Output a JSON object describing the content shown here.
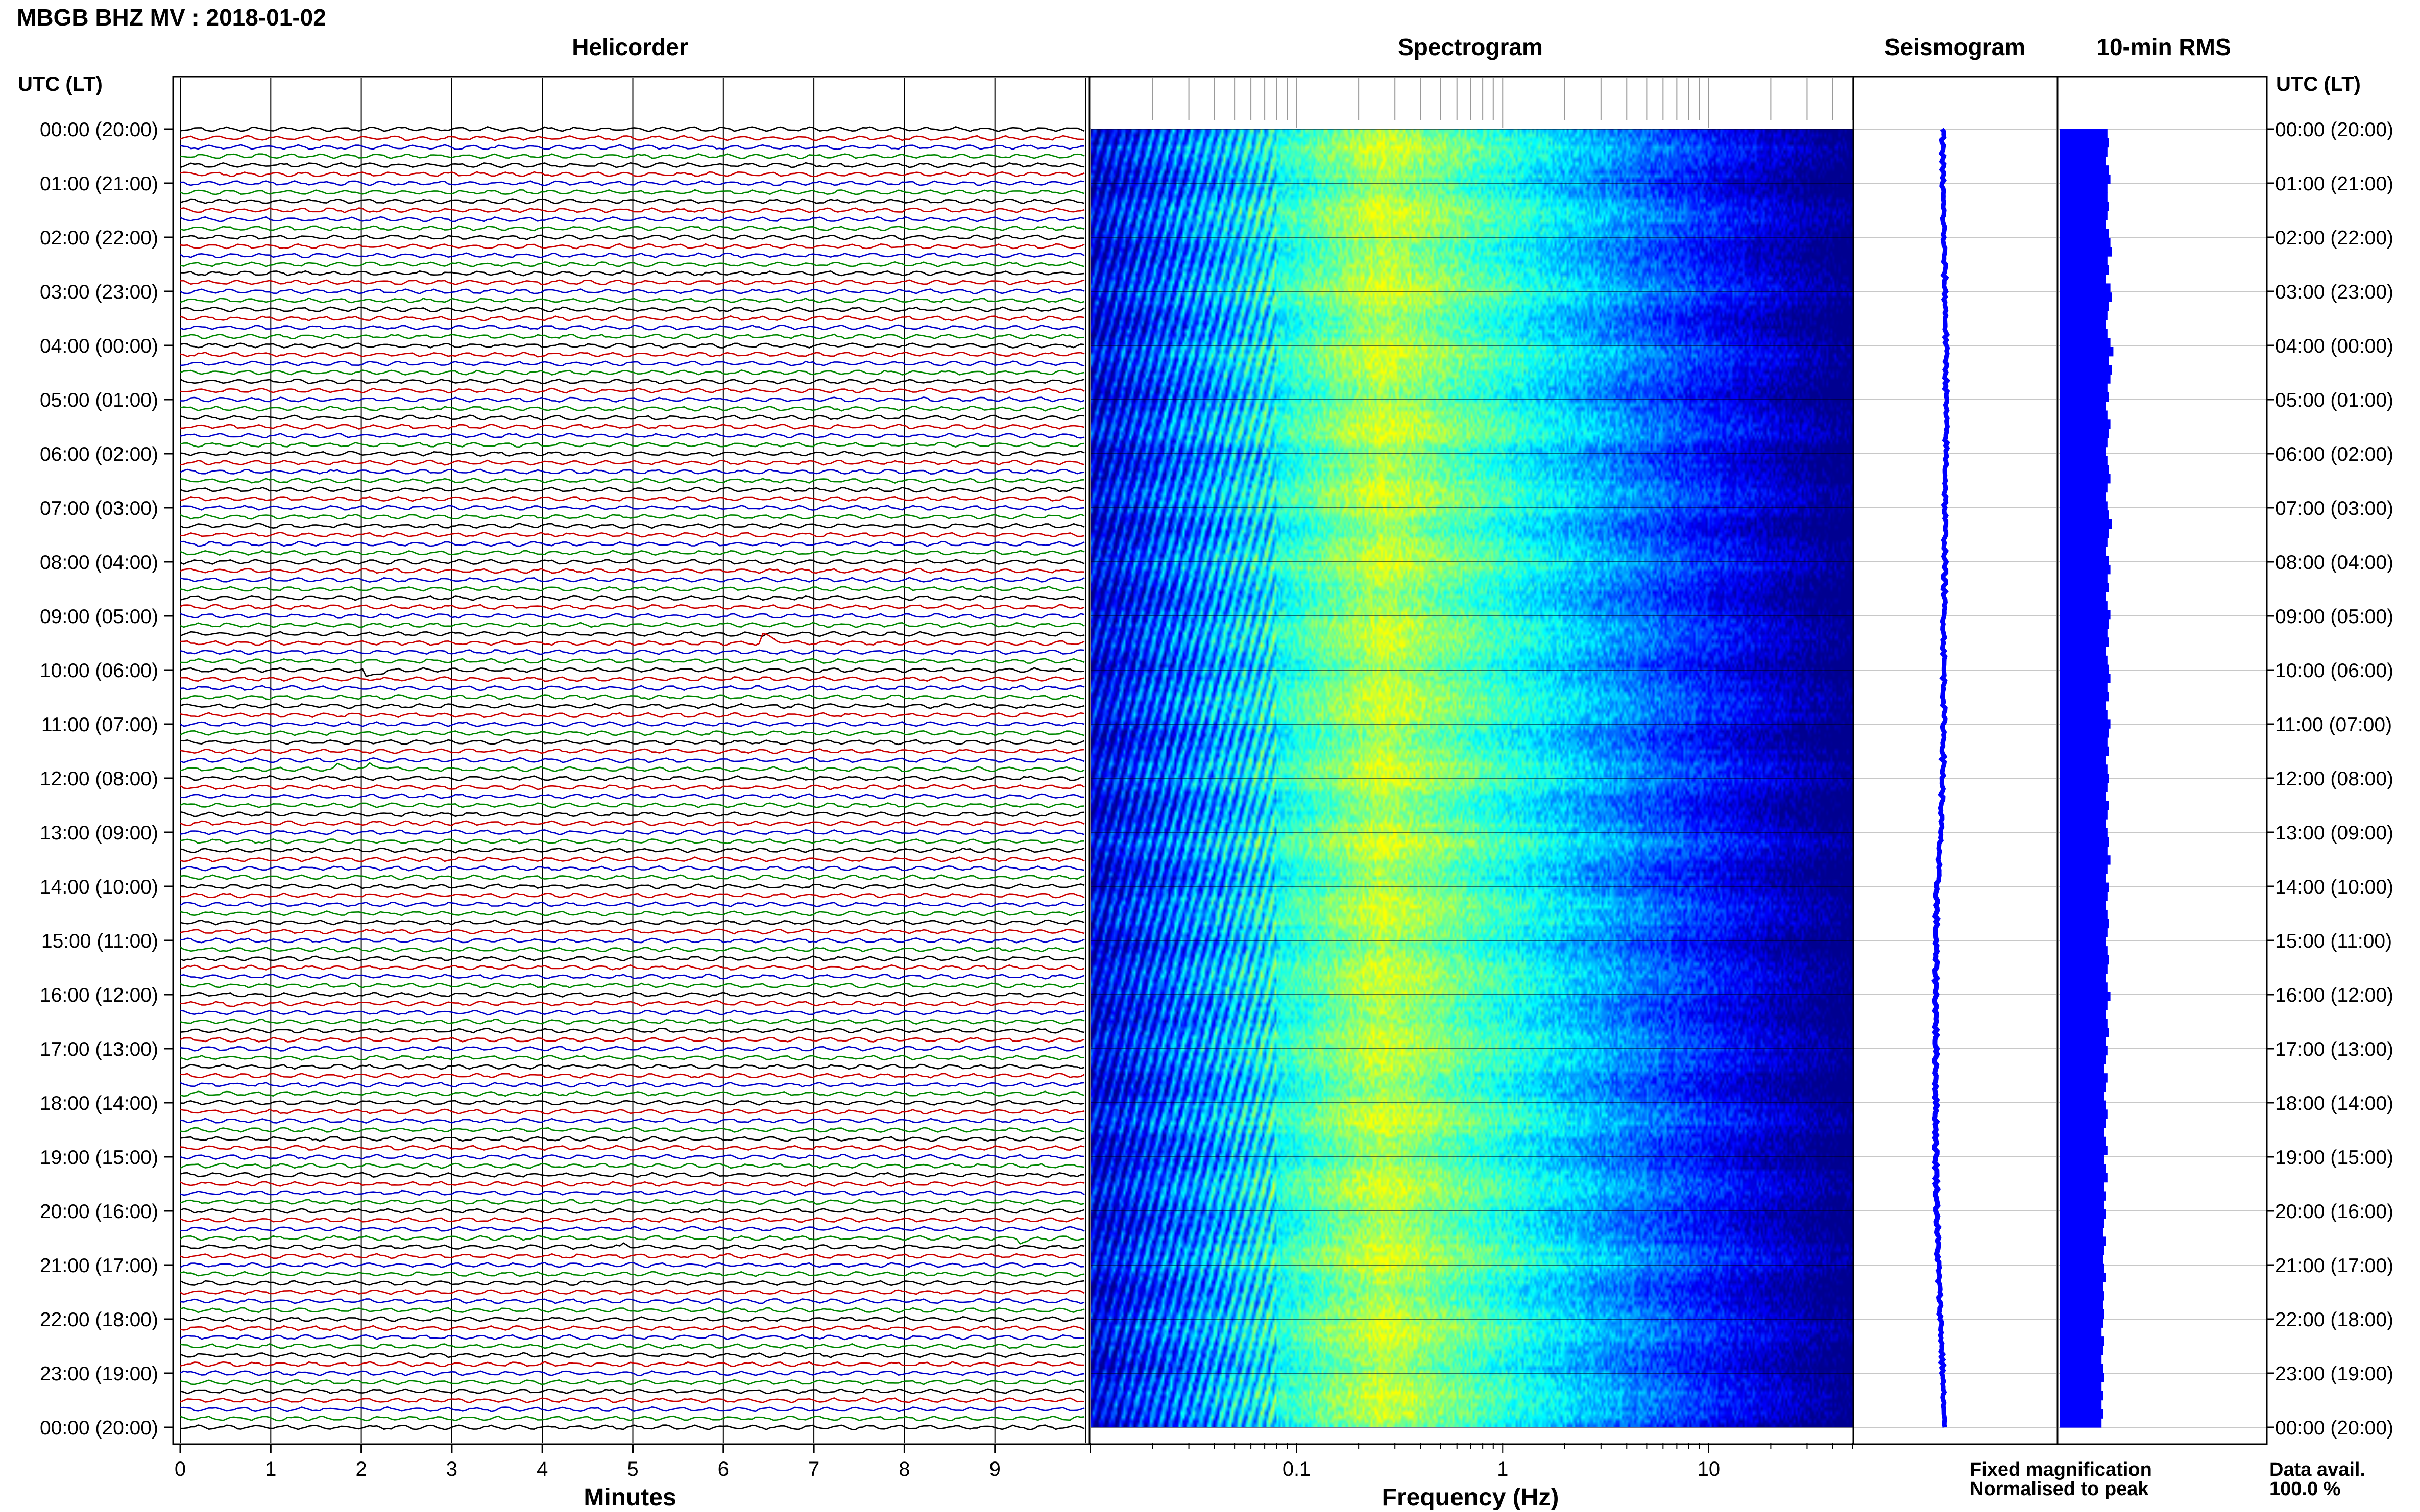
{
  "station_title": "MBGB BHZ MV : 2018-01-02",
  "chart_data": [
    {
      "type": "line",
      "title": "Helicorder",
      "xlabel": "Minutes",
      "xticks": [
        "0",
        "1",
        "2",
        "3",
        "4",
        "5",
        "6",
        "7",
        "8",
        "9"
      ],
      "xlim": [
        0,
        10
      ],
      "row_interval_minutes": 10,
      "row_colors": [
        "#000000",
        "#cc0000",
        "#0000cc",
        "#008800"
      ],
      "events": [
        {
          "row": 57,
          "minute": 6.45,
          "amplitude": 2.2
        },
        {
          "row": 60,
          "minute": 2.05,
          "amplitude": 3.5
        },
        {
          "row": 71,
          "minute": 1.75,
          "amplitude": 1.0
        },
        {
          "row": 71,
          "minute": 2.1,
          "amplitude": 1.2
        },
        {
          "row": 97,
          "minute": 0.5,
          "amplitude": 0.6
        },
        {
          "row": 97,
          "minute": 5.9,
          "amplitude": 0.6
        },
        {
          "row": 98,
          "minute": 7.7,
          "amplitude": 0.8
        },
        {
          "row": 123,
          "minute": 9.3,
          "amplitude": 2.5
        },
        {
          "row": 124,
          "minute": 4.9,
          "amplitude": 0.8
        }
      ]
    },
    {
      "type": "heatmap",
      "title": "Spectrogram",
      "xlabel": "Frequency (Hz)",
      "xscale": "log",
      "xlim": [
        0.01,
        50
      ],
      "xticks": [
        {
          "value": 0.1,
          "label": "0.1"
        },
        {
          "value": 1,
          "label": "1"
        },
        {
          "value": 10,
          "label": "10"
        }
      ],
      "peak_frequency_hz": 0.25,
      "colormap": [
        "#000090",
        "#0000ff",
        "#0080ff",
        "#00ffff",
        "#80ff80",
        "#ffff00"
      ]
    },
    {
      "type": "line",
      "title": "Seismogram",
      "trace_color": "#0000ff",
      "xlim": [
        -1,
        1
      ],
      "offsets": [
        0,
        0,
        0.01,
        0.02,
        0.03,
        0.03,
        0.03,
        0.02,
        0.02,
        0.01,
        0.01,
        0.01,
        0.0,
        -0.02,
        -0.05,
        -0.06,
        -0.06,
        -0.06,
        -0.06,
        -0.06,
        -0.05,
        -0.04,
        -0.02,
        0.0,
        0.01
      ]
    },
    {
      "type": "bar",
      "title": "10-min RMS",
      "bar_color": "#0000ff",
      "values": [
        0.32,
        0.33,
        0.32,
        0.31,
        0.33,
        0.34,
        0.32,
        0.32,
        0.33,
        0.32,
        0.31,
        0.33,
        0.34,
        0.35,
        0.32,
        0.33,
        0.31,
        0.34,
        0.35,
        0.33,
        0.32,
        0.31,
        0.32,
        0.34,
        0.36,
        0.33,
        0.35,
        0.34,
        0.32,
        0.33,
        0.31,
        0.32,
        0.34,
        0.33,
        0.32,
        0.31,
        0.32,
        0.33,
        0.34,
        0.32,
        0.31,
        0.32,
        0.33,
        0.35,
        0.33,
        0.32,
        0.31,
        0.33,
        0.34,
        0.32,
        0.33,
        0.31,
        0.32,
        0.34,
        0.33,
        0.32,
        0.33,
        0.31,
        0.32,
        0.33,
        0.34,
        0.32,
        0.33,
        0.31,
        0.32,
        0.34,
        0.33,
        0.32,
        0.33,
        0.31,
        0.32,
        0.33,
        0.32,
        0.31,
        0.33,
        0.32,
        0.31,
        0.32,
        0.33,
        0.32,
        0.34,
        0.32,
        0.31,
        0.33,
        0.32,
        0.31,
        0.32,
        0.33,
        0.32,
        0.31,
        0.32,
        0.33,
        0.32,
        0.31,
        0.32,
        0.34,
        0.32,
        0.31,
        0.32,
        0.33,
        0.31,
        0.32,
        0.31,
        0.3,
        0.32,
        0.31,
        0.3,
        0.31,
        0.32,
        0.31,
        0.3,
        0.31,
        0.32,
        0.3,
        0.31,
        0.32,
        0.3,
        0.31,
        0.3,
        0.31,
        0.3,
        0.29,
        0.31,
        0.3,
        0.29,
        0.3,
        0.31,
        0.29,
        0.3,
        0.29,
        0.3,
        0.29,
        0.28,
        0.3,
        0.29,
        0.28,
        0.29,
        0.3,
        0.28,
        0.29,
        0.28,
        0.29,
        0.28
      ]
    }
  ],
  "y_axis_header": "UTC (LT)",
  "time_labels": [
    "00:00 (20:00)",
    "01:00 (21:00)",
    "02:00 (22:00)",
    "03:00 (23:00)",
    "04:00 (00:00)",
    "05:00 (01:00)",
    "06:00 (02:00)",
    "07:00 (03:00)",
    "08:00 (04:00)",
    "09:00 (05:00)",
    "10:00 (06:00)",
    "11:00 (07:00)",
    "12:00 (08:00)",
    "13:00 (09:00)",
    "14:00 (10:00)",
    "15:00 (11:00)",
    "16:00 (12:00)",
    "17:00 (13:00)",
    "18:00 (14:00)",
    "19:00 (15:00)",
    "20:00 (16:00)",
    "21:00 (17:00)",
    "22:00 (18:00)",
    "23:00 (19:00)",
    "00:00 (20:00)"
  ],
  "legend": [
    {
      "label": "Fixed magnification",
      "color": "#0000ff"
    },
    {
      "label": "Normalised to peak",
      "color": "#ff0000"
    }
  ],
  "data_availability": {
    "label": "Data avail.",
    "value": "100.0 %"
  }
}
